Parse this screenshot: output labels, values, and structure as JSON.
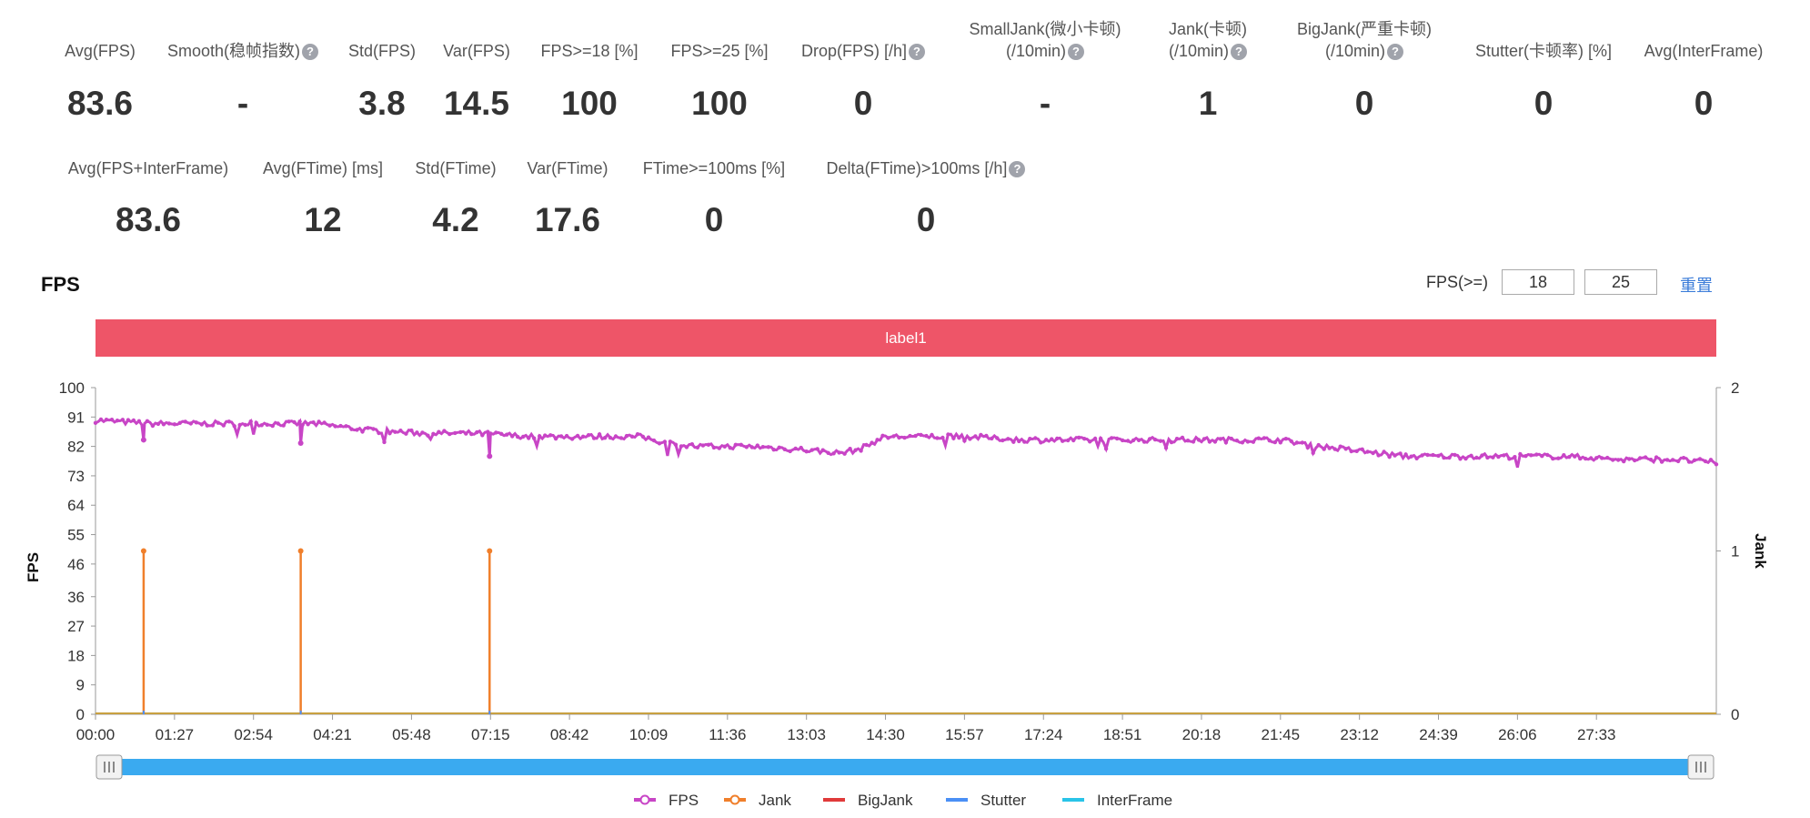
{
  "metrics_row1": [
    {
      "label": "Avg(FPS)",
      "value": "83.6",
      "help": false
    },
    {
      "label": "Smooth(稳帧指数)",
      "value": "-",
      "help": true
    },
    {
      "label": "Std(FPS)",
      "value": "3.8",
      "help": false
    },
    {
      "label": "Var(FPS)",
      "value": "14.5",
      "help": false
    },
    {
      "label": "FPS>=18 [%]",
      "value": "100",
      "help": false
    },
    {
      "label": "FPS>=25 [%]",
      "value": "100",
      "help": false
    },
    {
      "label": "Drop(FPS) [/h]",
      "value": "0",
      "help": true
    },
    {
      "label": "SmallJank(微小卡顿)",
      "label2": "(/10min)",
      "value": "-",
      "help": true
    },
    {
      "label": "Jank(卡顿)",
      "label2": "(/10min)",
      "value": "1",
      "help": true
    },
    {
      "label": "BigJank(严重卡顿)",
      "label2": "(/10min)",
      "value": "0",
      "help": true
    },
    {
      "label": "Stutter(卡顿率) [%]",
      "value": "0",
      "help": false
    },
    {
      "label": "Avg(InterFrame)",
      "value": "0",
      "help": false
    }
  ],
  "metrics_row2": [
    {
      "label": "Avg(FPS+InterFrame)",
      "value": "83.6",
      "help": false
    },
    {
      "label": "Avg(FTime) [ms]",
      "value": "12",
      "help": false
    },
    {
      "label": "Std(FTime)",
      "value": "4.2",
      "help": false
    },
    {
      "label": "Var(FTime)",
      "value": "17.6",
      "help": false
    },
    {
      "label": "FTime>=100ms [%]",
      "value": "0",
      "help": false
    },
    {
      "label": "Delta(FTime)>100ms [/h]",
      "value": "0",
      "help": true
    }
  ],
  "chart_header": {
    "title": "FPS",
    "threshold_label": "FPS(>=)",
    "threshold_low": "18",
    "threshold_high": "25",
    "reset_label": "重置"
  },
  "label_bar": "label1",
  "chart_data": {
    "type": "line",
    "ylabel": "FPS",
    "y2label": "Jank",
    "ylim": [
      0,
      100
    ],
    "y2lim": [
      0,
      2
    ],
    "yticks": [
      "0",
      "9",
      "18",
      "27",
      "36",
      "46",
      "55",
      "64",
      "73",
      "82",
      "91",
      "100"
    ],
    "y2ticks": [
      "0",
      "1",
      "2"
    ],
    "xticks": [
      "00:00",
      "01:27",
      "02:54",
      "04:21",
      "05:48",
      "07:15",
      "08:42",
      "10:09",
      "11:36",
      "13:03",
      "14:30",
      "15:57",
      "17:24",
      "18:51",
      "20:18",
      "21:45",
      "23:12",
      "24:39",
      "26:06",
      "27:33"
    ],
    "x_end_seconds": 1785,
    "grid": false,
    "legend_position": "bottom",
    "series": [
      {
        "name": "FPS",
        "color": "#c845c6",
        "axis": "left",
        "x": [
          "00:00",
          "01:00",
          "02:00",
          "03:00",
          "04:00",
          "05:00",
          "06:00",
          "07:00",
          "08:00",
          "09:00",
          "10:00",
          "10:30",
          "11:00",
          "12:00",
          "13:00",
          "13:40",
          "14:00",
          "14:30",
          "15:00",
          "16:00",
          "17:00",
          "18:00",
          "19:00",
          "20:00",
          "21:00",
          "21:45",
          "22:30",
          "23:30",
          "24:00",
          "25:00",
          "26:00",
          "27:00",
          "28:00",
          "29:00",
          "29:45"
        ],
        "values": [
          90,
          89,
          89,
          89,
          89,
          87,
          86,
          86,
          85,
          85,
          85,
          83,
          82,
          82,
          81,
          80,
          81,
          85,
          85,
          85,
          84,
          84,
          84,
          84,
          84,
          84,
          82,
          80,
          79,
          79,
          79,
          79,
          78,
          78,
          77
        ],
        "dips": [
          [
            "00:53",
            84
          ],
          [
            "03:46",
            83
          ],
          [
            "07:14",
            79
          ]
        ]
      },
      {
        "name": "Jank",
        "color": "#f07f2b",
        "axis": "right",
        "events": [
          "00:53",
          "03:46",
          "07:14"
        ],
        "event_value": 1
      },
      {
        "name": "BigJank",
        "color": "#e03a3a",
        "axis": "right",
        "events": []
      },
      {
        "name": "Stutter",
        "color": "#4a8ff5",
        "axis": "right",
        "events": []
      },
      {
        "name": "InterFrame",
        "color": "#29c4e8",
        "axis": "right",
        "events": []
      }
    ]
  }
}
